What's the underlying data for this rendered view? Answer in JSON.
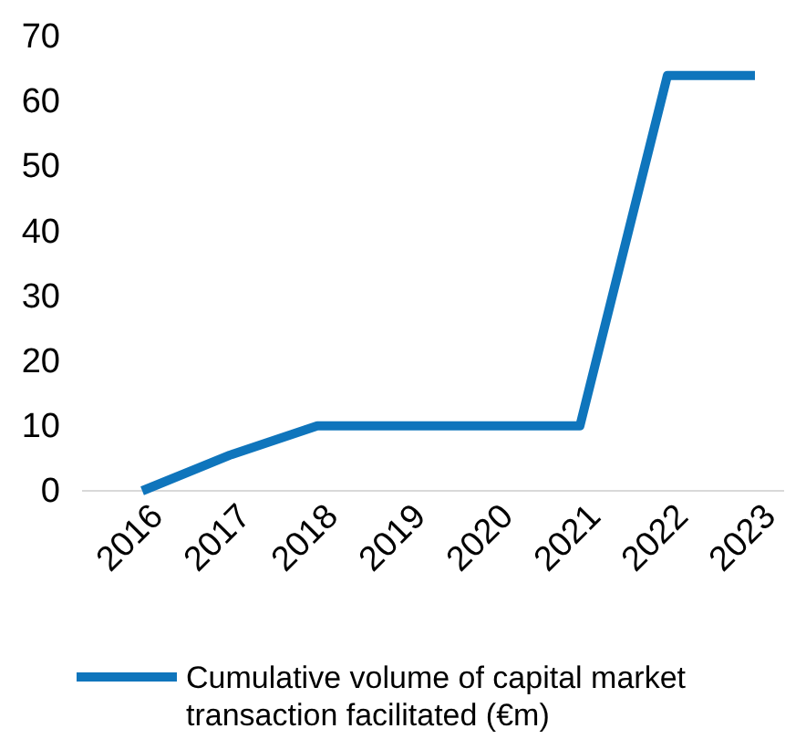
{
  "chart_data": {
    "type": "line",
    "categories": [
      "2016",
      "2017",
      "2018",
      "2019",
      "2020",
      "2021",
      "2022",
      "2023"
    ],
    "series": [
      {
        "name": "Cumulative volume of capital market transaction facilitated (€m)",
        "color": "#0f75bc",
        "values": [
          0,
          5.5,
          10,
          10,
          10,
          10,
          64,
          64
        ]
      }
    ],
    "ylim": [
      0,
      70
    ],
    "yticks": [
      0,
      10,
      20,
      30,
      40,
      50,
      60,
      70
    ],
    "grid": false,
    "legend": "bottom",
    "marker": "none",
    "line_style": "solid"
  }
}
